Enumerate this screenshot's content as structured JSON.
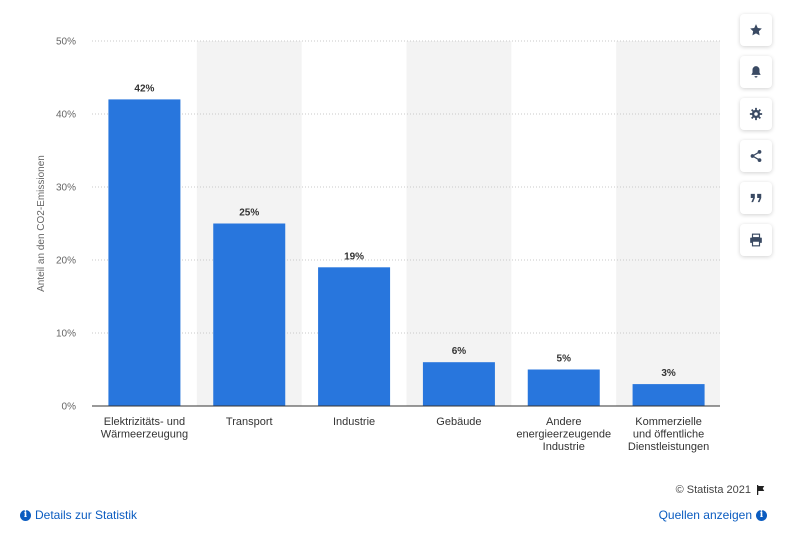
{
  "chart_data": {
    "type": "bar",
    "categories": [
      [
        "Elektrizitäts- und",
        "Wärmeerzeugung"
      ],
      [
        "Transport"
      ],
      [
        "Industrie"
      ],
      [
        "Gebäude"
      ],
      [
        "Andere",
        "energieerzeugende",
        "Industrie"
      ],
      [
        "Kommerzielle",
        "und öffentliche",
        "Dienstleistungen"
      ]
    ],
    "values": [
      42,
      25,
      19,
      6,
      5,
      3
    ],
    "data_labels": [
      "42%",
      "25%",
      "19%",
      "6%",
      "5%",
      "3%"
    ],
    "ylabel": "Anteil an den CO2-Emissionen",
    "xlabel": "",
    "ylim": [
      0,
      50
    ],
    "y_ticks": [
      0,
      10,
      20,
      30,
      40,
      50
    ],
    "y_tick_labels": [
      "0%",
      "10%",
      "20%",
      "30%",
      "40%",
      "50%"
    ],
    "grid": true,
    "bar_color": "#2876dd",
    "alt_band_color": "#f3f3f3"
  },
  "toolbar": {
    "icons": [
      "star-icon",
      "bell-icon",
      "gear-icon",
      "share-icon",
      "quote-icon",
      "print-icon"
    ]
  },
  "footer": {
    "copyright": "© Statista 2021",
    "details_link": "Details zur Statistik",
    "sources_link": "Quellen anzeigen"
  }
}
